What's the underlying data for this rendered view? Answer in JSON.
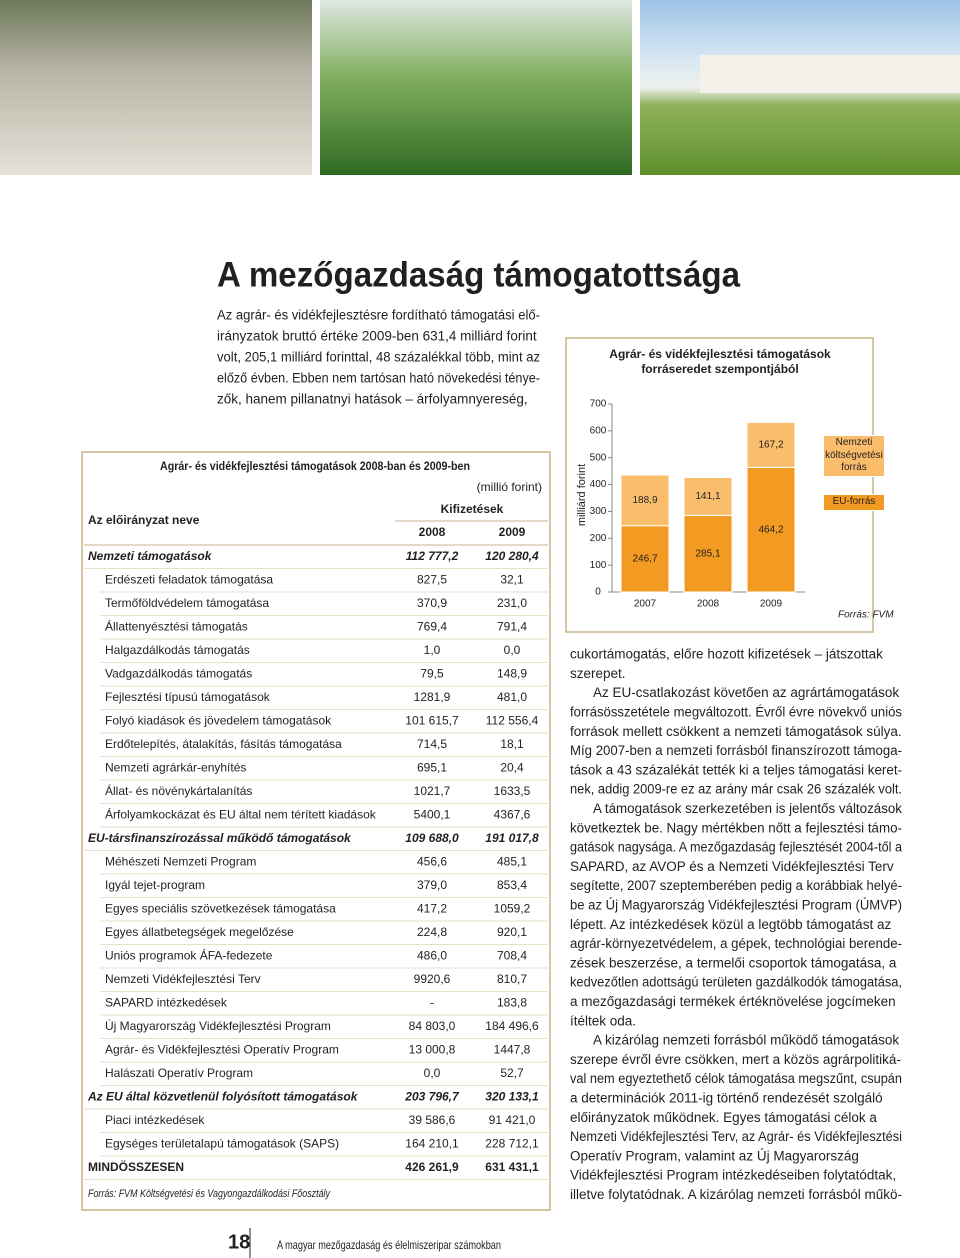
{
  "header": {
    "title": "A mezőgazdaság támogatottsága"
  },
  "intro": [
    "Az agrár- és vidékfejlesztésre fordítható támogatási elő-",
    "irányzatok bruttó értéke 2009-ben 631,4 milliárd forint",
    "volt, 205,1 milliárd forinttal, 48 százalékkal több, mint az",
    "előző évben. Ebben nem tartósan ható növekedési ténye-",
    "zők, hanem pillanatnyi hatások – árfolyamnyereség,"
  ],
  "table": {
    "title": "Agrár- és vidékfejlesztési támogatások 2008-ban és 2009-ben",
    "unit": "(millió forint)",
    "headers": {
      "name": "Az előirányzat neve",
      "payments": "Kifizetések",
      "years": [
        "2008",
        "2009"
      ]
    },
    "groups": [
      {
        "row": [
          "Nemzeti támogatások",
          "112 777,2",
          "120 280,4"
        ],
        "rows": [
          [
            "Erdészeti feladatok támogatása",
            "827,5",
            "32,1"
          ],
          [
            "Termőföldvédelem támogatása",
            "370,9",
            "231,0"
          ],
          [
            "Állattenyésztési támogatás",
            "769,4",
            "791,4"
          ],
          [
            "Halgazdálkodás támogatás",
            "1,0",
            "0,0"
          ],
          [
            "Vadgazdálkodás támogatás",
            "79,5",
            "148,9"
          ],
          [
            "Fejlesztési típusú támogatások",
            "1281,9",
            "481,0"
          ],
          [
            "Folyó kiadások és jövedelem támogatások",
            "101 615,7",
            "112 556,4"
          ],
          [
            "Erdőtelepítés, átalakítás, fásítás támogatása",
            "714,5",
            "18,1"
          ],
          [
            "Nemzeti agrárkár-enyhítés",
            "695,1",
            "20,4"
          ],
          [
            "Állat- és növénykártalanítás",
            "1021,7",
            "1633,5"
          ],
          [
            "Árfolyamkockázat és EU által nem térített kiadások",
            "5400,1",
            "4367,6"
          ]
        ]
      },
      {
        "row": [
          "EU-társfinanszírozással működő támogatások",
          "109 688,0",
          "191 017,8"
        ],
        "rows": [
          [
            "Méhészeti Nemzeti Program",
            "456,6",
            "485,1"
          ],
          [
            "Igyál tejet-program",
            "379,0",
            "853,4"
          ],
          [
            "Egyes speciális szövetkezések támogatása",
            "417,2",
            "1059,2"
          ],
          [
            "Egyes állatbetegségek megelőzése",
            "224,8",
            "920,1"
          ],
          [
            "Uniós programok ÁFA-fedezete",
            "486,0",
            "708,4"
          ],
          [
            "Nemzeti Vidékfejlesztési Terv",
            "9920,6",
            "810,7"
          ],
          [
            "SAPARD intézkedések",
            "-",
            "183,8"
          ],
          [
            "Új Magyarország Vidékfejlesztési Program",
            "84 803,0",
            "184 496,6"
          ],
          [
            "Agrár- és Vidékfejlesztési Operatív Program",
            "13 000,8",
            "1447,8"
          ],
          [
            "Halászati Operatív Program",
            "0,0",
            "52,7"
          ]
        ]
      },
      {
        "row": [
          "Az EU által közvetlenül folyósított támogatások",
          "203 796,7",
          "320 133,1"
        ],
        "rows": [
          [
            "Piaci intézkedések",
            "39 586,6",
            "91 421,0"
          ],
          [
            "Egységes területalapú támogatások (SAPS)",
            "164 210,1",
            "228 712,1"
          ]
        ]
      }
    ],
    "total": [
      "MINDÖSSZESEN",
      "426 261,9",
      "631 431,1"
    ],
    "source": "Forrás: FVM Költségvetési és Vagyongazdálkodási Főosztály"
  },
  "chart_data": {
    "type": "bar",
    "stacked": true,
    "title": "Agrár- és vidékfejlesztési támogatások forráseredet szempontjából",
    "ylabel": "milliárd forint",
    "categories": [
      "2007",
      "2008",
      "2009"
    ],
    "series": [
      {
        "name": "Nemzeti költségvetési forrás",
        "color": "#f9bd6c",
        "values": [
          188.9,
          141.1,
          167.2
        ],
        "value_labels": [
          "188,9",
          "141,1",
          "167,2"
        ]
      },
      {
        "name": "EU-forrás",
        "color": "#f39a22",
        "values": [
          246.7,
          285.1,
          464.2
        ],
        "value_labels": [
          "246,7",
          "285,1",
          "464,2"
        ]
      }
    ],
    "ylim": [
      0,
      700
    ],
    "yticks": [
      0,
      100,
      200,
      300,
      400,
      500,
      600,
      700
    ],
    "source": "Forrás: FVM"
  },
  "body_text": [
    [
      "cukortámogatás, előre hozott kifizetések – játszottak",
      "szerepet."
    ],
    [
      "Az EU-csatlakozást követően az agrártámogatások",
      "forrásösszetétele megváltozott. Évről évre növekvő uniós",
      "források mellett csökkent a nemzeti támogatások súlya.",
      "Míg 2007-ben a nemzeti forrásból finanszírozott támoga-",
      "tások a 43 százalékát tették ki a teljes támogatási keret-",
      "nek, addig 2009-re ez az arány már csak 26 százalék volt."
    ],
    [
      "A támogatások szerkezetében is jelentős változások",
      "következtek be. Nagy mértékben nőtt a fejlesztési támo-",
      "gatások nagysága. A mezőgazdaság fejlesztését 2004-től a",
      "SAPARD, az AVOP és a Nemzeti Vidékfejlesztési Terv",
      "segítette, 2007 szeptemberében pedig a korábbiak helyé-",
      "be az Új Magyarország Vidékfejlesztési Program (ÚMVP)",
      "lépett. Az intézkedések közül a legtöbb támogatást az",
      "agrár-környezetvédelem, a gépek, technológiai berende-",
      "zések beszerzése, a termelői csoportok támogatása, a",
      "kedvezőtlen adottságú területen gazdálkodók támogatása,",
      "a mezőgazdasági termékek értéknövelése jogcímeken",
      "ítéltek oda."
    ],
    [
      "A kizárólag nemzeti forrásból működő támogatások",
      "szerepe évről évre csökken, mert a közös agrárpolitiká-",
      "val nem egyeztethető célok támogatása megszűnt, csupán",
      "a determinációk 2011-ig történő rendezését szolgáló",
      "előirányzatok működnek. Egyes támogatási célok a",
      "Nemzeti Vidékfejlesztési Terv, az Agrár- és Vidékfejlesztési",
      "Operatív Program, valamint az Új Magyarország",
      "Vidékfejlesztési Program intézkedéseiben folytatódtak,",
      "illetve folytatódnak. A kizárólag nemzeti forrásból műkö-"
    ]
  ],
  "footer": {
    "page": "18",
    "publication": "A magyar mezőgazdaság és élelmiszeripar számokban"
  }
}
